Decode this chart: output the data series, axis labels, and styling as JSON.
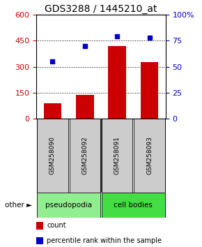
{
  "title": "GDS3288 / 1445210_at",
  "samples": [
    "GSM258090",
    "GSM258092",
    "GSM258091",
    "GSM258093"
  ],
  "counts": [
    90,
    135,
    420,
    325
  ],
  "percentiles": [
    55,
    70,
    79,
    78
  ],
  "left_ylim": [
    0,
    600
  ],
  "left_yticks": [
    0,
    150,
    300,
    450,
    600
  ],
  "right_ylim": [
    0,
    100
  ],
  "right_yticks": [
    0,
    25,
    50,
    75,
    100
  ],
  "right_yticklabels": [
    "0",
    "25",
    "50",
    "75",
    "100%"
  ],
  "bar_color": "#cc0000",
  "dot_color": "#0000cc",
  "bar_width": 0.55,
  "groups": [
    {
      "label": "pseudopodia",
      "color": "#90ee90",
      "indices": [
        0,
        1
      ]
    },
    {
      "label": "cell bodies",
      "color": "#44dd44",
      "indices": [
        2,
        3
      ]
    }
  ],
  "other_label": "other",
  "legend_items": [
    {
      "label": "count",
      "color": "#cc0000"
    },
    {
      "label": "percentile rank within the sample",
      "color": "#0000cc"
    }
  ],
  "tick_label_color_left": "#cc0000",
  "tick_label_color_right": "#0000cc",
  "title_fontsize": 10,
  "tick_fontsize": 8,
  "legend_fontsize": 7
}
